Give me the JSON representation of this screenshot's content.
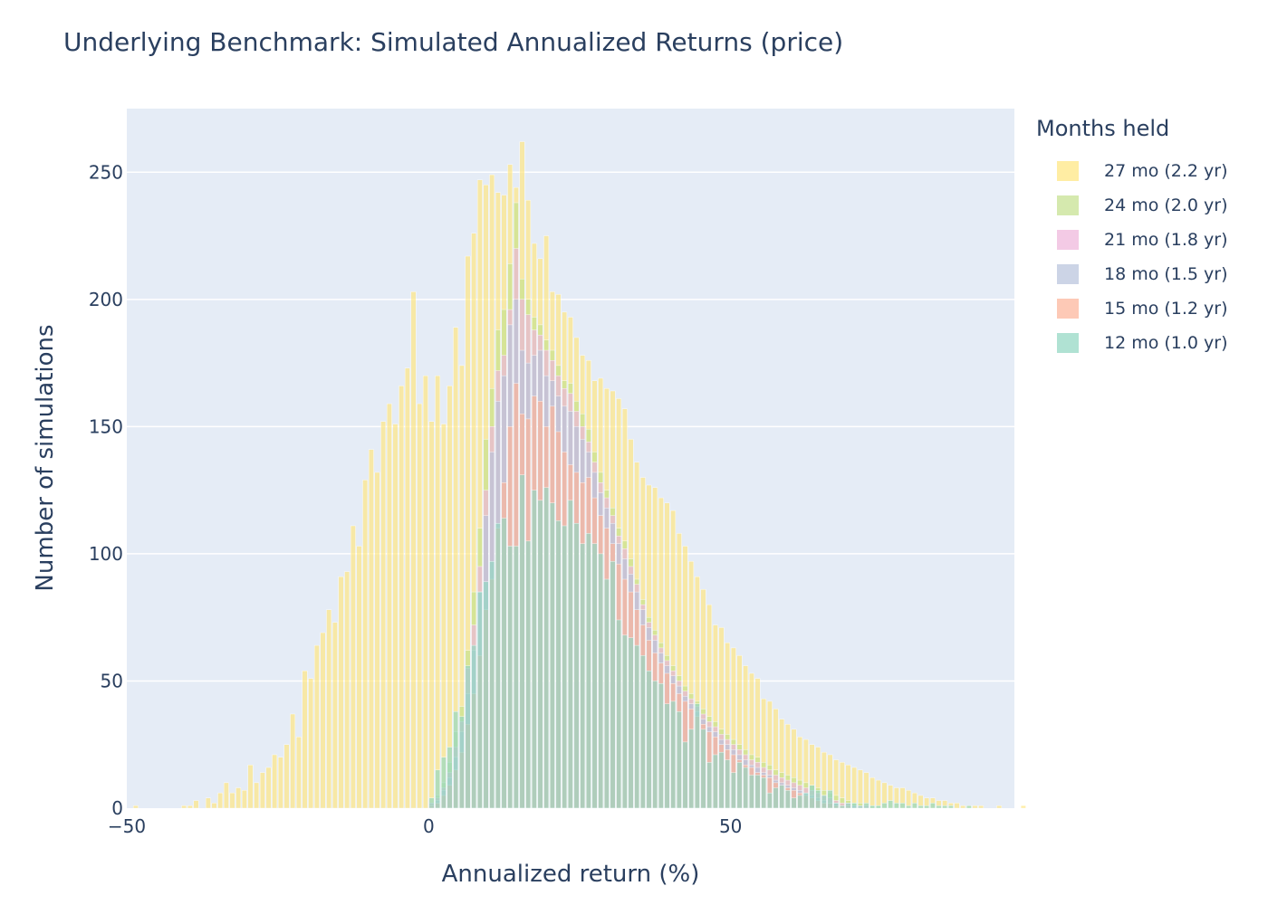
{
  "chart_data": {
    "type": "bar",
    "barmode": "overlay",
    "title": "Underlying Benchmark: Simulated Annualized Returns (price)",
    "xlabel": "Annualized return (%)",
    "ylabel": "Number of simulations",
    "xlim": [
      -50,
      97
    ],
    "ylim": [
      0,
      275
    ],
    "x_ticks": [
      -50,
      0,
      50
    ],
    "x_tick_labels": [
      "−50",
      "0",
      "50"
    ],
    "y_ticks": [
      0,
      50,
      100,
      150,
      200,
      250
    ],
    "grid": true,
    "legend_title": "Months held",
    "legend_position": "right",
    "series": [
      {
        "name": "27 mo (2.2 yr)",
        "color": "#ffe680",
        "bin_start": -49,
        "bin_width": 1,
        "values": [
          1,
          0,
          0,
          0,
          0,
          0,
          0,
          0,
          1,
          1,
          3,
          0,
          4,
          2,
          6,
          10,
          6,
          8,
          7,
          17,
          10,
          14,
          16,
          21,
          20,
          25,
          37,
          28,
          54,
          51,
          64,
          69,
          78,
          73,
          91,
          93,
          111,
          103,
          129,
          141,
          132,
          152,
          159,
          151,
          166,
          173,
          203,
          159,
          170,
          152,
          170,
          151,
          166,
          189,
          174,
          217,
          226,
          247,
          245,
          249,
          242,
          241,
          253,
          244,
          262,
          239,
          222,
          216,
          225,
          203,
          202,
          195,
          193,
          185,
          178,
          176,
          168,
          169,
          165,
          164,
          161,
          157,
          145,
          136,
          130,
          127,
          126,
          122,
          120,
          117,
          108,
          103,
          97,
          91,
          86,
          80,
          72,
          71,
          65,
          63,
          60,
          56,
          53,
          51,
          43,
          42,
          39,
          35,
          33,
          31,
          28,
          27,
          25,
          24,
          22,
          21,
          19,
          18,
          17,
          16,
          15,
          14,
          12,
          11,
          10,
          9,
          8,
          8,
          7,
          6,
          5,
          4,
          4,
          3,
          3,
          2,
          2,
          1,
          1,
          1,
          1,
          0,
          0,
          1,
          0,
          0,
          0,
          1
        ]
      },
      {
        "name": "24 mo (2.0 yr)",
        "color": "#c5e18f",
        "bin_start": 0,
        "bin_width": 1,
        "values": [
          2,
          5,
          10,
          18,
          30,
          40,
          62,
          85,
          110,
          145,
          165,
          188,
          196,
          214,
          238,
          208,
          200,
          193,
          190,
          184,
          180,
          174,
          168,
          167,
          160,
          155,
          149,
          140,
          132,
          125,
          118,
          110,
          105,
          98,
          90,
          82,
          75,
          70,
          65,
          60,
          56,
          52,
          48,
          45,
          42,
          39,
          36,
          34,
          31,
          29,
          27,
          25,
          23,
          21,
          20,
          18,
          17,
          15,
          14,
          13,
          12,
          11,
          10,
          9,
          8,
          7,
          6,
          5,
          4,
          3,
          2,
          2,
          1,
          1,
          1
        ]
      },
      {
        "name": "21 mo (1.8 yr)",
        "color": "#eeb5db",
        "bin_start": 0,
        "bin_width": 1,
        "values": [
          2,
          4,
          8,
          14,
          24,
          34,
          55,
          72,
          95,
          125,
          150,
          172,
          178,
          196,
          220,
          200,
          194,
          188,
          186,
          180,
          176,
          170,
          165,
          163,
          156,
          150,
          144,
          136,
          128,
          122,
          115,
          107,
          102,
          95,
          88,
          80,
          73,
          68,
          63,
          58,
          54,
          50,
          46,
          43,
          40,
          37,
          34,
          32,
          29,
          27,
          25,
          23,
          21,
          19,
          18,
          16,
          15,
          13,
          12,
          11,
          10,
          9,
          8,
          7,
          6,
          5,
          4,
          3,
          2,
          2,
          1,
          1,
          1,
          0,
          0
        ]
      },
      {
        "name": "18 mo (1.5 yr)",
        "color": "#b8c3dc",
        "bin_start": 0,
        "bin_width": 1,
        "values": [
          1,
          3,
          7,
          12,
          20,
          30,
          45,
          62,
          85,
          115,
          140,
          160,
          170,
          190,
          200,
          180,
          175,
          178,
          180,
          170,
          168,
          162,
          158,
          156,
          150,
          145,
          140,
          132,
          124,
          118,
          112,
          104,
          98,
          92,
          85,
          78,
          71,
          66,
          61,
          56,
          52,
          48,
          44,
          41,
          38,
          35,
          32,
          30,
          27,
          25,
          23,
          21,
          19,
          17,
          16,
          14,
          13,
          11,
          10,
          9,
          8,
          7,
          6,
          5,
          4,
          3,
          2,
          2,
          1,
          1,
          1,
          0,
          0,
          0,
          0
        ]
      },
      {
        "name": "15 mo (1.2 yr)",
        "color": "#fcb49a",
        "bin_start": 0,
        "bin_width": 1,
        "values": [
          1,
          2,
          5,
          9,
          15,
          22,
          33,
          45,
          60,
          78,
          90,
          110,
          128,
          150,
          167,
          155,
          153,
          162,
          160,
          150,
          158,
          148,
          140,
          135,
          132,
          128,
          130,
          122,
          115,
          110,
          104,
          96,
          90,
          85,
          78,
          72,
          66,
          61,
          57,
          53,
          49,
          45,
          42,
          39,
          36,
          33,
          30,
          28,
          25,
          23,
          21,
          19,
          17,
          16,
          14,
          13,
          12,
          10,
          9,
          8,
          7,
          6,
          5,
          4,
          3,
          2,
          2,
          1,
          1,
          1,
          0,
          0,
          0,
          0,
          0
        ]
      },
      {
        "name": "12 mo (1.0 yr)",
        "color": "#92d7c2",
        "bin_start": 0,
        "bin_width": 1,
        "values": [
          4,
          15,
          20,
          24,
          38,
          36,
          56,
          64,
          85,
          89,
          97,
          112,
          114,
          103,
          103,
          131,
          105,
          125,
          121,
          126,
          120,
          113,
          111,
          121,
          112,
          104,
          108,
          104,
          100,
          90,
          97,
          74,
          68,
          67,
          64,
          60,
          54,
          50,
          49,
          41,
          42,
          38,
          26,
          31,
          41,
          31,
          18,
          21,
          22,
          19,
          14,
          18,
          16,
          13,
          13,
          12,
          6,
          8,
          9,
          7,
          4,
          5,
          6,
          9,
          7,
          5,
          7,
          2,
          1,
          2,
          2,
          1,
          2,
          1,
          1,
          2,
          3,
          2,
          2,
          1,
          2,
          1,
          1,
          2,
          1,
          1,
          1,
          0,
          0,
          1
        ]
      }
    ]
  }
}
